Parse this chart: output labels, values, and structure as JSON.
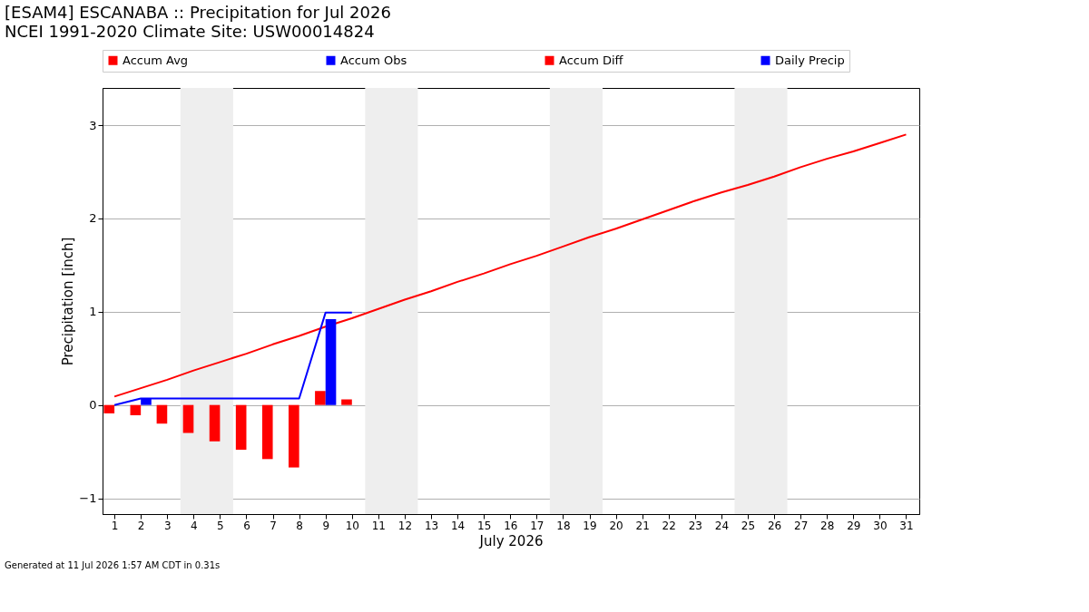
{
  "chart_data": {
    "type": "bar",
    "title": "[ESAM4] ESCANABA :: Precipitation for Jul 2026",
    "subtitle": "NCEI 1991-2020 Climate Site: USW00014824",
    "xlabel": "July 2026",
    "ylabel": "Precipitation [inch]",
    "x": [
      1,
      2,
      3,
      4,
      5,
      6,
      7,
      8,
      9,
      10,
      11,
      12,
      13,
      14,
      15,
      16,
      17,
      18,
      19,
      20,
      21,
      22,
      23,
      24,
      25,
      26,
      27,
      28,
      29,
      30,
      31
    ],
    "series": [
      {
        "name": "Accum Avg",
        "type": "line",
        "color": "#ff0000",
        "values": [
          0.09,
          0.18,
          0.27,
          0.37,
          0.46,
          0.55,
          0.65,
          0.74,
          0.84,
          0.93,
          1.03,
          1.13,
          1.22,
          1.32,
          1.41,
          1.51,
          1.6,
          1.7,
          1.8,
          1.89,
          1.99,
          2.09,
          2.19,
          2.28,
          2.36,
          2.45,
          2.55,
          2.64,
          2.72,
          2.81,
          2.9
        ]
      },
      {
        "name": "Accum Obs",
        "type": "line",
        "color": "#0000ff",
        "values": [
          0.0,
          0.07,
          0.07,
          0.07,
          0.07,
          0.07,
          0.07,
          0.07,
          0.99,
          0.99,
          null,
          null,
          null,
          null,
          null,
          null,
          null,
          null,
          null,
          null,
          null,
          null,
          null,
          null,
          null,
          null,
          null,
          null,
          null,
          null,
          null
        ]
      },
      {
        "name": "Accum Diff",
        "color": "#ff0000",
        "values": [
          -0.09,
          -0.11,
          -0.2,
          -0.3,
          -0.39,
          -0.48,
          -0.58,
          -0.67,
          0.15,
          0.06,
          null,
          null,
          null,
          null,
          null,
          null,
          null,
          null,
          null,
          null,
          null,
          null,
          null,
          null,
          null,
          null,
          null,
          null,
          null,
          null,
          null
        ]
      },
      {
        "name": "Daily Precip",
        "color": "#0000ff",
        "values": [
          0,
          0.07,
          0,
          0,
          0,
          0,
          0,
          0,
          0.92,
          0,
          null,
          null,
          null,
          null,
          null,
          null,
          null,
          null,
          null,
          null,
          null,
          null,
          null,
          null,
          null,
          null,
          null,
          null,
          null,
          null,
          null
        ]
      }
    ],
    "xlim": [
      0.55,
      31.5
    ],
    "xticks": [
      1,
      2,
      3,
      4,
      5,
      6,
      7,
      8,
      9,
      10,
      11,
      12,
      13,
      14,
      15,
      16,
      17,
      18,
      19,
      20,
      21,
      22,
      23,
      24,
      25,
      26,
      27,
      28,
      29,
      30,
      31
    ],
    "ylim": [
      -1.17,
      3.4
    ],
    "yticks": [
      -1,
      0,
      1,
      2,
      3
    ],
    "bands": [
      {
        "axis": "x",
        "from": 3.5,
        "to": 5.5,
        "color": "#eeeeee"
      },
      {
        "axis": "x",
        "from": 10.5,
        "to": 12.5,
        "color": "#eeeeee"
      },
      {
        "axis": "x",
        "from": 17.5,
        "to": 19.5,
        "color": "#eeeeee"
      },
      {
        "axis": "x",
        "from": 24.5,
        "to": 26.5,
        "color": "#eeeeee"
      }
    ],
    "grid": "y",
    "legend": "top",
    "annotations": [
      "Generated at 11 Jul 2026 1:57 AM CDT in 0.31s"
    ]
  }
}
